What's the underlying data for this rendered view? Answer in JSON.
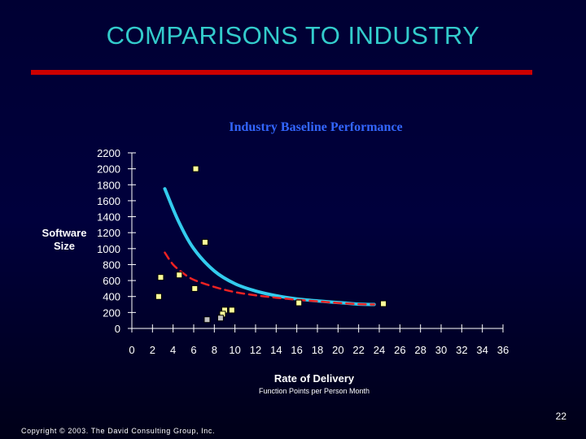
{
  "slide": {
    "title": "COMPARISONS TO INDUSTRY",
    "page_number": "22",
    "copyright": "Copyright © 2003.  The David Consulting Group, Inc."
  },
  "colors": {
    "title": "#33cccc",
    "rule": "#cc0000",
    "curve_solid": "#33ccee",
    "curve_dashed": "#ee2222",
    "marker_fill": "#ffff99",
    "marker_alt_fill": "#c0c0c0"
  },
  "chart_data": {
    "type": "scatter",
    "title": "Industry Baseline Performance",
    "ylabel": "Software Size",
    "xlabel": "Rate of Delivery",
    "xlabel_sub": "Function Points per Person Month",
    "xlim": [
      0,
      36
    ],
    "ylim": [
      0,
      2200
    ],
    "xticks": [
      0,
      2,
      4,
      6,
      8,
      10,
      12,
      14,
      16,
      18,
      20,
      22,
      24,
      26,
      28,
      30,
      32,
      34,
      36
    ],
    "yticks": [
      0,
      200,
      400,
      600,
      800,
      1000,
      1200,
      1400,
      1600,
      1800,
      2000,
      2200
    ],
    "grid": false,
    "series": [
      {
        "points": [
          {
            "x": 6.2,
            "y": 2000
          },
          {
            "x": 7.1,
            "y": 1080
          },
          {
            "x": 2.8,
            "y": 640
          },
          {
            "x": 4.6,
            "y": 670
          },
          {
            "x": 6.1,
            "y": 500
          },
          {
            "x": 2.6,
            "y": 400
          },
          {
            "x": 9.0,
            "y": 230
          },
          {
            "x": 9.7,
            "y": 230
          },
          {
            "x": 8.8,
            "y": 180
          },
          {
            "x": 16.2,
            "y": 320
          },
          {
            "x": 24.4,
            "y": 310
          }
        ]
      },
      {
        "points": [
          {
            "x": 7.3,
            "y": 110
          },
          {
            "x": 8.6,
            "y": 130
          }
        ]
      }
    ],
    "trend_lines": [
      {
        "style": "solid",
        "points": [
          [
            3.2,
            1750
          ],
          [
            4.5,
            1350
          ],
          [
            6,
            1000
          ],
          [
            8,
            720
          ],
          [
            10,
            560
          ],
          [
            12,
            470
          ],
          [
            14,
            410
          ],
          [
            16,
            370
          ],
          [
            18,
            345
          ],
          [
            20,
            325
          ],
          [
            22,
            305
          ],
          [
            23.5,
            300
          ]
        ]
      },
      {
        "style": "dashed",
        "points": [
          [
            3.2,
            950
          ],
          [
            4,
            800
          ],
          [
            5,
            690
          ],
          [
            6,
            610
          ],
          [
            8,
            520
          ],
          [
            10,
            455
          ],
          [
            12,
            415
          ],
          [
            14,
            385
          ],
          [
            16,
            360
          ],
          [
            18,
            340
          ],
          [
            20,
            320
          ],
          [
            22,
            305
          ],
          [
            23.5,
            300
          ]
        ]
      }
    ]
  }
}
